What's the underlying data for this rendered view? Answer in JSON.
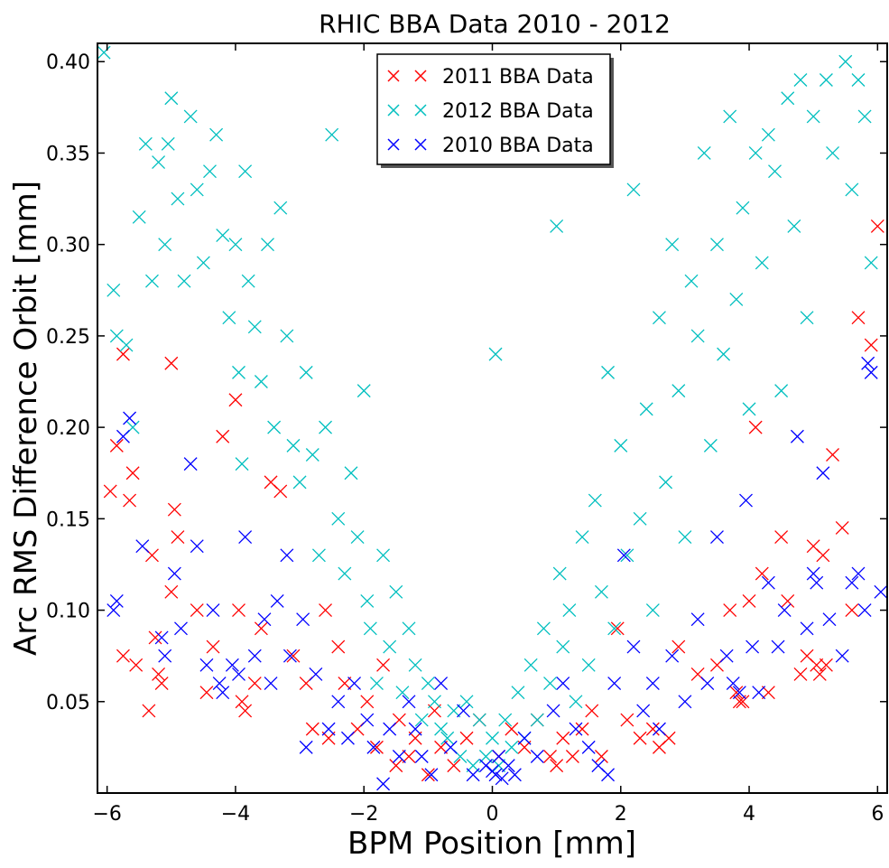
{
  "chart_data": {
    "type": "scatter",
    "title": "RHIC BBA Data 2010 -  2012",
    "xlabel": "BPM Position [mm]",
    "ylabel": "Arc RMS Difference Orbit [mm]",
    "xlim": [
      -6.15,
      6.15
    ],
    "ylim": [
      0.0,
      0.41
    ],
    "xticks": [
      -6,
      -4,
      -2,
      0,
      2,
      4,
      6
    ],
    "yticks": [
      0.05,
      0.1,
      0.15,
      0.2,
      0.25,
      0.3,
      0.35,
      0.4
    ],
    "ytick_labels": [
      "0.05",
      "0.10",
      "0.15",
      "0.20",
      "0.25",
      "0.30",
      "0.35",
      "0.40"
    ],
    "grid": false,
    "legend_position": "top-center",
    "marker": "x",
    "series": [
      {
        "name": "2011 BBA Data",
        "color": "#ff0000",
        "points": [
          [
            -5.95,
            0.165
          ],
          [
            -5.85,
            0.19
          ],
          [
            -5.75,
            0.24
          ],
          [
            -5.65,
            0.16
          ],
          [
            -5.6,
            0.175
          ],
          [
            -5.55,
            0.07
          ],
          [
            -5.75,
            0.075
          ],
          [
            -5.3,
            0.13
          ],
          [
            -5.25,
            0.085
          ],
          [
            -5.2,
            0.065
          ],
          [
            -5.15,
            0.06
          ],
          [
            -5.35,
            0.045
          ],
          [
            -5.0,
            0.11
          ],
          [
            -4.95,
            0.155
          ],
          [
            -4.9,
            0.14
          ],
          [
            -5.0,
            0.235
          ],
          [
            -4.6,
            0.1
          ],
          [
            -4.45,
            0.055
          ],
          [
            -4.35,
            0.08
          ],
          [
            -4.2,
            0.195
          ],
          [
            -4.0,
            0.215
          ],
          [
            -3.95,
            0.1
          ],
          [
            -3.9,
            0.05
          ],
          [
            -3.85,
            0.045
          ],
          [
            -3.7,
            0.06
          ],
          [
            -3.6,
            0.09
          ],
          [
            -3.45,
            0.17
          ],
          [
            -3.3,
            0.165
          ],
          [
            -3.1,
            0.075
          ],
          [
            -2.9,
            0.06
          ],
          [
            -2.8,
            0.035
          ],
          [
            -2.6,
            0.1
          ],
          [
            -2.55,
            0.03
          ],
          [
            -2.4,
            0.08
          ],
          [
            -2.3,
            0.06
          ],
          [
            -2.1,
            0.035
          ],
          [
            -1.95,
            0.05
          ],
          [
            -1.8,
            0.025
          ],
          [
            -1.7,
            0.07
          ],
          [
            -1.5,
            0.015
          ],
          [
            -1.45,
            0.04
          ],
          [
            -1.3,
            0.02
          ],
          [
            -1.2,
            0.03
          ],
          [
            -1.0,
            0.01
          ],
          [
            -0.9,
            0.045
          ],
          [
            -0.8,
            0.025
          ],
          [
            -0.6,
            0.015
          ],
          [
            -0.4,
            0.03
          ],
          [
            -0.2,
            0.04
          ],
          [
            0.1,
            0.02
          ],
          [
            0.3,
            0.035
          ],
          [
            0.5,
            0.025
          ],
          [
            0.7,
            0.04
          ],
          [
            0.9,
            0.02
          ],
          [
            1.0,
            0.015
          ],
          [
            1.1,
            0.03
          ],
          [
            1.25,
            0.02
          ],
          [
            1.4,
            0.035
          ],
          [
            1.55,
            0.045
          ],
          [
            1.7,
            0.02
          ],
          [
            1.95,
            0.09
          ],
          [
            2.1,
            0.04
          ],
          [
            2.3,
            0.03
          ],
          [
            2.5,
            0.035
          ],
          [
            2.6,
            0.025
          ],
          [
            2.75,
            0.03
          ],
          [
            2.9,
            0.08
          ],
          [
            3.2,
            0.065
          ],
          [
            3.5,
            0.07
          ],
          [
            3.7,
            0.1
          ],
          [
            3.8,
            0.055
          ],
          [
            3.85,
            0.05
          ],
          [
            3.9,
            0.05
          ],
          [
            4.0,
            0.105
          ],
          [
            4.1,
            0.2
          ],
          [
            4.2,
            0.12
          ],
          [
            4.3,
            0.055
          ],
          [
            4.5,
            0.14
          ],
          [
            4.6,
            0.105
          ],
          [
            4.8,
            0.065
          ],
          [
            4.9,
            0.075
          ],
          [
            5.0,
            0.135
          ],
          [
            5.05,
            0.07
          ],
          [
            5.1,
            0.065
          ],
          [
            5.15,
            0.13
          ],
          [
            5.2,
            0.07
          ],
          [
            5.3,
            0.185
          ],
          [
            5.45,
            0.145
          ],
          [
            5.6,
            0.1
          ],
          [
            5.7,
            0.26
          ],
          [
            5.9,
            0.245
          ],
          [
            6.0,
            0.31
          ]
        ]
      },
      {
        "name": "2012 BBA Data",
        "color": "#00bfbf",
        "points": [
          [
            -6.05,
            0.405
          ],
          [
            -5.9,
            0.275
          ],
          [
            -5.85,
            0.25
          ],
          [
            -5.7,
            0.245
          ],
          [
            -5.6,
            0.2
          ],
          [
            -5.5,
            0.315
          ],
          [
            -5.4,
            0.355
          ],
          [
            -5.3,
            0.28
          ],
          [
            -5.2,
            0.345
          ],
          [
            -5.1,
            0.3
          ],
          [
            -5.05,
            0.355
          ],
          [
            -5.0,
            0.38
          ],
          [
            -4.9,
            0.325
          ],
          [
            -4.8,
            0.28
          ],
          [
            -4.7,
            0.37
          ],
          [
            -4.6,
            0.33
          ],
          [
            -4.5,
            0.29
          ],
          [
            -4.4,
            0.34
          ],
          [
            -4.3,
            0.36
          ],
          [
            -4.2,
            0.305
          ],
          [
            -4.1,
            0.26
          ],
          [
            -4.0,
            0.3
          ],
          [
            -3.95,
            0.23
          ],
          [
            -3.9,
            0.18
          ],
          [
            -3.85,
            0.34
          ],
          [
            -3.8,
            0.28
          ],
          [
            -3.7,
            0.255
          ],
          [
            -3.6,
            0.225
          ],
          [
            -3.5,
            0.3
          ],
          [
            -3.4,
            0.2
          ],
          [
            -3.3,
            0.32
          ],
          [
            -3.2,
            0.25
          ],
          [
            -3.1,
            0.19
          ],
          [
            -3.0,
            0.17
          ],
          [
            -2.9,
            0.23
          ],
          [
            -2.8,
            0.185
          ],
          [
            -2.7,
            0.13
          ],
          [
            -2.6,
            0.2
          ],
          [
            -2.5,
            0.36
          ],
          [
            -2.4,
            0.15
          ],
          [
            -2.3,
            0.12
          ],
          [
            -2.2,
            0.175
          ],
          [
            -2.1,
            0.14
          ],
          [
            -2.0,
            0.22
          ],
          [
            -1.95,
            0.105
          ],
          [
            -1.9,
            0.09
          ],
          [
            -1.8,
            0.06
          ],
          [
            -1.7,
            0.13
          ],
          [
            -1.6,
            0.08
          ],
          [
            -1.5,
            0.11
          ],
          [
            -1.4,
            0.055
          ],
          [
            -1.3,
            0.09
          ],
          [
            -1.2,
            0.07
          ],
          [
            -1.1,
            0.04
          ],
          [
            -1.0,
            0.06
          ],
          [
            -0.9,
            0.05
          ],
          [
            -0.8,
            0.035
          ],
          [
            -0.7,
            0.03
          ],
          [
            -0.6,
            0.045
          ],
          [
            -0.5,
            0.02
          ],
          [
            -0.4,
            0.05
          ],
          [
            -0.3,
            0.015
          ],
          [
            -0.2,
            0.04
          ],
          [
            -0.1,
            0.02
          ],
          [
            0.0,
            0.03
          ],
          [
            0.05,
            0.24
          ],
          [
            0.1,
            0.015
          ],
          [
            0.2,
            0.04
          ],
          [
            0.3,
            0.025
          ],
          [
            0.4,
            0.055
          ],
          [
            0.5,
            0.03
          ],
          [
            0.6,
            0.07
          ],
          [
            0.7,
            0.04
          ],
          [
            0.8,
            0.09
          ],
          [
            0.9,
            0.06
          ],
          [
            1.0,
            0.31
          ],
          [
            1.05,
            0.12
          ],
          [
            1.1,
            0.08
          ],
          [
            1.2,
            0.1
          ],
          [
            1.3,
            0.05
          ],
          [
            1.4,
            0.14
          ],
          [
            1.5,
            0.07
          ],
          [
            1.6,
            0.16
          ],
          [
            1.7,
            0.11
          ],
          [
            1.8,
            0.23
          ],
          [
            1.9,
            0.09
          ],
          [
            2.0,
            0.19
          ],
          [
            2.1,
            0.13
          ],
          [
            2.2,
            0.33
          ],
          [
            2.3,
            0.15
          ],
          [
            2.4,
            0.21
          ],
          [
            2.5,
            0.1
          ],
          [
            2.6,
            0.26
          ],
          [
            2.7,
            0.17
          ],
          [
            2.8,
            0.3
          ],
          [
            2.9,
            0.22
          ],
          [
            3.0,
            0.14
          ],
          [
            3.1,
            0.28
          ],
          [
            3.2,
            0.25
          ],
          [
            3.3,
            0.35
          ],
          [
            3.4,
            0.19
          ],
          [
            3.5,
            0.3
          ],
          [
            3.6,
            0.24
          ],
          [
            3.7,
            0.37
          ],
          [
            3.8,
            0.27
          ],
          [
            3.9,
            0.32
          ],
          [
            4.0,
            0.21
          ],
          [
            4.1,
            0.35
          ],
          [
            4.2,
            0.29
          ],
          [
            4.3,
            0.36
          ],
          [
            4.4,
            0.34
          ],
          [
            4.5,
            0.22
          ],
          [
            4.6,
            0.38
          ],
          [
            4.7,
            0.31
          ],
          [
            4.8,
            0.39
          ],
          [
            4.9,
            0.26
          ],
          [
            5.0,
            0.37
          ],
          [
            5.2,
            0.39
          ],
          [
            5.3,
            0.35
          ],
          [
            5.5,
            0.4
          ],
          [
            5.6,
            0.33
          ],
          [
            5.7,
            0.39
          ],
          [
            5.8,
            0.37
          ],
          [
            5.9,
            0.29
          ]
        ]
      },
      {
        "name": "2010 BBA Data",
        "color": "#0000ff",
        "points": [
          [
            -5.9,
            0.1
          ],
          [
            -5.85,
            0.105
          ],
          [
            -5.75,
            0.195
          ],
          [
            -5.65,
            0.205
          ],
          [
            -5.45,
            0.135
          ],
          [
            -5.15,
            0.085
          ],
          [
            -5.1,
            0.075
          ],
          [
            -4.95,
            0.12
          ],
          [
            -4.85,
            0.09
          ],
          [
            -4.7,
            0.18
          ],
          [
            -4.6,
            0.135
          ],
          [
            -4.45,
            0.07
          ],
          [
            -4.35,
            0.1
          ],
          [
            -4.25,
            0.06
          ],
          [
            -4.2,
            0.055
          ],
          [
            -4.05,
            0.07
          ],
          [
            -3.95,
            0.065
          ],
          [
            -3.85,
            0.14
          ],
          [
            -3.7,
            0.075
          ],
          [
            -3.55,
            0.095
          ],
          [
            -3.45,
            0.06
          ],
          [
            -3.35,
            0.105
          ],
          [
            -3.2,
            0.13
          ],
          [
            -3.15,
            0.075
          ],
          [
            -2.95,
            0.095
          ],
          [
            -2.9,
            0.025
          ],
          [
            -2.75,
            0.065
          ],
          [
            -2.55,
            0.035
          ],
          [
            -2.4,
            0.05
          ],
          [
            -2.25,
            0.03
          ],
          [
            -2.15,
            0.06
          ],
          [
            -1.95,
            0.04
          ],
          [
            -1.85,
            0.025
          ],
          [
            -1.7,
            0.005
          ],
          [
            -1.6,
            0.035
          ],
          [
            -1.45,
            0.02
          ],
          [
            -1.3,
            0.05
          ],
          [
            -1.2,
            0.035
          ],
          [
            -1.1,
            0.02
          ],
          [
            -0.95,
            0.01
          ],
          [
            -0.8,
            0.06
          ],
          [
            -0.65,
            0.025
          ],
          [
            -0.45,
            0.045
          ],
          [
            -0.3,
            0.01
          ],
          [
            -0.1,
            0.015
          ],
          [
            0.0,
            0.012
          ],
          [
            0.05,
            0.01
          ],
          [
            0.1,
            0.02
          ],
          [
            0.15,
            0.008
          ],
          [
            0.25,
            0.015
          ],
          [
            0.35,
            0.01
          ],
          [
            0.5,
            0.03
          ],
          [
            0.7,
            0.02
          ],
          [
            0.95,
            0.045
          ],
          [
            1.1,
            0.06
          ],
          [
            1.3,
            0.035
          ],
          [
            1.5,
            0.025
          ],
          [
            1.65,
            0.015
          ],
          [
            1.8,
            0.01
          ],
          [
            1.9,
            0.06
          ],
          [
            2.05,
            0.13
          ],
          [
            2.2,
            0.08
          ],
          [
            2.35,
            0.045
          ],
          [
            2.5,
            0.06
          ],
          [
            2.6,
            0.035
          ],
          [
            2.8,
            0.075
          ],
          [
            3.0,
            0.05
          ],
          [
            3.2,
            0.095
          ],
          [
            3.35,
            0.06
          ],
          [
            3.5,
            0.14
          ],
          [
            3.65,
            0.075
          ],
          [
            3.75,
            0.06
          ],
          [
            3.85,
            0.055
          ],
          [
            3.95,
            0.16
          ],
          [
            4.05,
            0.08
          ],
          [
            4.15,
            0.055
          ],
          [
            4.3,
            0.115
          ],
          [
            4.45,
            0.08
          ],
          [
            4.55,
            0.1
          ],
          [
            4.75,
            0.195
          ],
          [
            4.9,
            0.09
          ],
          [
            5.0,
            0.12
          ],
          [
            5.05,
            0.115
          ],
          [
            5.15,
            0.175
          ],
          [
            5.25,
            0.095
          ],
          [
            5.45,
            0.075
          ],
          [
            5.6,
            0.115
          ],
          [
            5.7,
            0.12
          ],
          [
            5.8,
            0.1
          ],
          [
            5.85,
            0.235
          ],
          [
            5.9,
            0.23
          ],
          [
            6.05,
            0.11
          ]
        ]
      }
    ],
    "legend": [
      {
        "label": "2011 BBA Data",
        "color": "#ff0000"
      },
      {
        "label": "2012 BBA Data",
        "color": "#00bfbf"
      },
      {
        "label": "2010 BBA Data",
        "color": "#0000ff"
      }
    ]
  }
}
